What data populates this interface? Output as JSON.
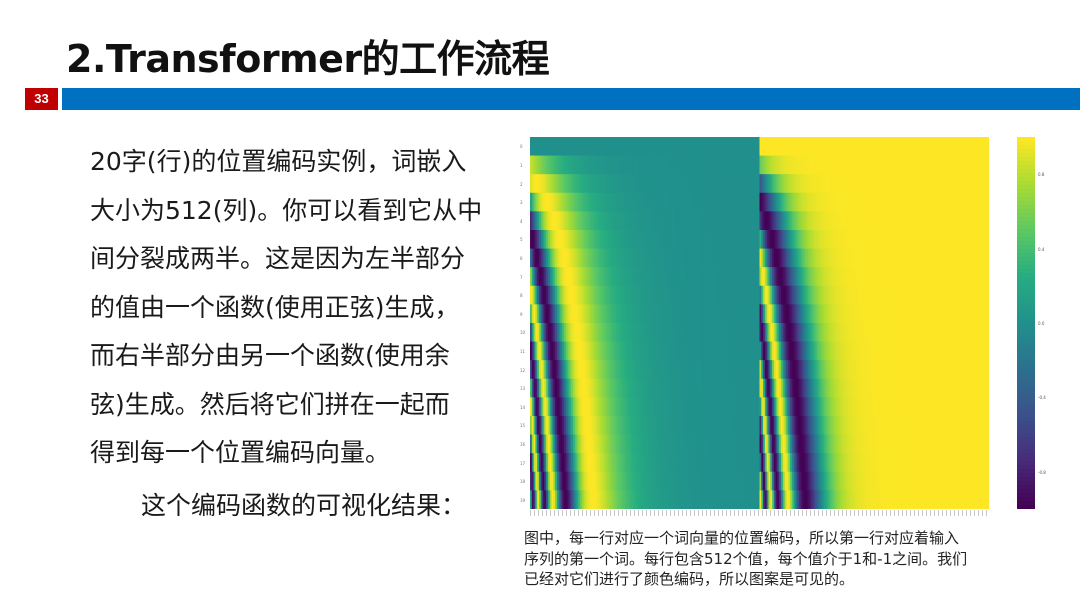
{
  "slide": {
    "title": "2.Transformer的工作流程",
    "page_number": "33",
    "body_lines": [
      "20字(行)的位置编码实例，词嵌入",
      "大小为512(列)。你可以看到它从中",
      "间分裂成两半。这是因为左半部分",
      "的值由一个函数(使用正弦)生成，",
      "而右半部分由另一个函数(使用余",
      "弦)生成。然后将它们拼在一起而",
      "得到每一个位置编码向量。"
    ],
    "subtitle": "这个编码函数的可视化结果：",
    "caption_lines": [
      "图中，每一行对应一个词向量的位置编码，所以第一行对应着输入",
      "序列的第一个词。每行包含512个值，每个值介于1和-1之间。我们",
      "已经对它们进行了颜色编码，所以图案是可见的。"
    ],
    "colors": {
      "accent_red": "#c00000",
      "accent_blue": "#0070c0"
    }
  },
  "chart_data": {
    "type": "heatmap",
    "rows": 20,
    "columns": 512,
    "colormap": "viridis",
    "vmin": -1,
    "vmax": 1,
    "left_half": "sin",
    "right_half": "cos",
    "colorbar_ticks": [
      "0.8",
      "0.4",
      "0.0",
      "-0.4",
      "-0.8"
    ]
  }
}
